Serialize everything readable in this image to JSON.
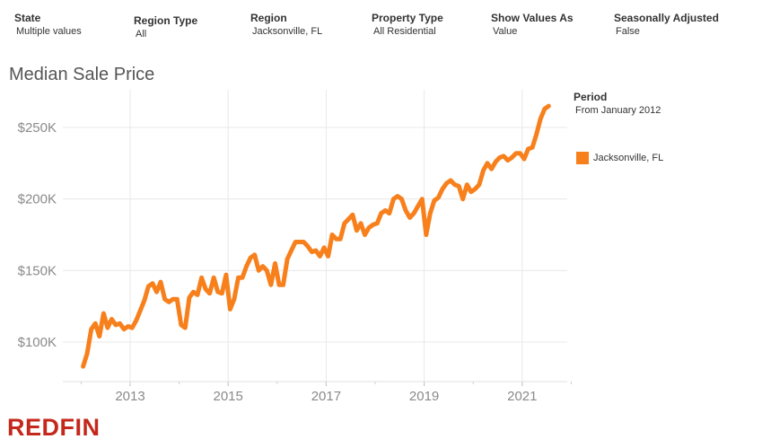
{
  "filters": [
    {
      "label": "State",
      "value": "Multiple values"
    },
    {
      "label": "Region Type",
      "value": "All"
    },
    {
      "label": "Region",
      "value": "Jacksonville, FL"
    },
    {
      "label": "Property Type",
      "value": "All Residential"
    },
    {
      "label": "Show Values As",
      "value": "Value"
    },
    {
      "label": "Seasonally Adjusted",
      "value": "False"
    }
  ],
  "legend": {
    "title": "Period",
    "subtitle": "From January 2012",
    "item": "Jacksonville, FL"
  },
  "logo": "REDFIN",
  "colors": {
    "line": "#F7801C",
    "logo": "#C4281C",
    "grid": "#E8E8E8"
  },
  "chart_data": {
    "type": "line",
    "title": "Median Sale Price",
    "xlabel": "",
    "ylabel": "",
    "x_ticks": [
      "2013",
      "2015",
      "2017",
      "2019",
      "2021"
    ],
    "y_ticks": [
      "$100K",
      "$150K",
      "$200K",
      "$250K"
    ],
    "y_tick_values": [
      100000,
      150000,
      200000,
      250000
    ],
    "xlim": [
      2012.0,
      2022.0
    ],
    "ylim": [
      80000,
      270000
    ],
    "grid": true,
    "series": [
      {
        "name": "Jacksonville, FL",
        "color": "#F7801C",
        "x": [
          2012.0,
          2012.083,
          2012.167,
          2012.25,
          2012.333,
          2012.417,
          2012.5,
          2012.583,
          2012.667,
          2012.75,
          2012.833,
          2012.917,
          2013.0,
          2013.083,
          2013.167,
          2013.25,
          2013.333,
          2013.417,
          2013.5,
          2013.583,
          2013.667,
          2013.75,
          2013.833,
          2013.917,
          2014.0,
          2014.083,
          2014.167,
          2014.25,
          2014.333,
          2014.417,
          2014.5,
          2014.583,
          2014.667,
          2014.75,
          2014.833,
          2014.917,
          2015.0,
          2015.083,
          2015.167,
          2015.25,
          2015.333,
          2015.417,
          2015.5,
          2015.583,
          2015.667,
          2015.75,
          2015.833,
          2015.917,
          2016.0,
          2016.083,
          2016.167,
          2016.25,
          2016.333,
          2016.417,
          2016.5,
          2016.583,
          2016.667,
          2016.75,
          2016.833,
          2016.917,
          2017.0,
          2017.083,
          2017.167,
          2017.25,
          2017.333,
          2017.417,
          2017.5,
          2017.583,
          2017.667,
          2017.75,
          2017.833,
          2017.917,
          2018.0,
          2018.083,
          2018.167,
          2018.25,
          2018.333,
          2018.417,
          2018.5,
          2018.583,
          2018.667,
          2018.75,
          2018.833,
          2018.917,
          2019.0,
          2019.083,
          2019.167,
          2019.25,
          2019.333,
          2019.417,
          2019.5,
          2019.583,
          2019.667,
          2019.75,
          2019.833,
          2019.917,
          2020.0,
          2020.083,
          2020.167,
          2020.25,
          2020.333,
          2020.417,
          2020.5,
          2020.583,
          2020.667,
          2020.75,
          2020.833,
          2020.917,
          2021.0,
          2021.083,
          2021.167,
          2021.25,
          2021.333,
          2021.417,
          2021.5
        ],
        "y": [
          83000,
          92000,
          109000,
          113000,
          104000,
          120000,
          110000,
          116000,
          112000,
          113000,
          109000,
          111000,
          110000,
          115000,
          122000,
          129000,
          139000,
          141000,
          135000,
          142000,
          130000,
          128000,
          130000,
          130000,
          112000,
          110000,
          131000,
          135000,
          133000,
          145000,
          137000,
          134000,
          145000,
          135000,
          134000,
          147000,
          123000,
          130000,
          145000,
          145000,
          153000,
          159000,
          161000,
          150000,
          153000,
          150000,
          140000,
          155000,
          140000,
          140000,
          158000,
          164000,
          170000,
          170000,
          170000,
          167000,
          163000,
          164000,
          160000,
          166000,
          160000,
          175000,
          172000,
          172000,
          183000,
          186000,
          189000,
          178000,
          183000,
          175000,
          180000,
          182000,
          183000,
          190000,
          192000,
          190000,
          200000,
          202000,
          200000,
          192000,
          187000,
          190000,
          195000,
          200000,
          175000,
          190000,
          199000,
          201000,
          207000,
          211000,
          213000,
          210000,
          209000,
          200000,
          210000,
          205000,
          207000,
          210000,
          220000,
          225000,
          221000,
          226000,
          229000,
          230000,
          227000,
          229000,
          232000,
          232000,
          228000,
          235000,
          236000,
          245000,
          256000,
          263000,
          265000
        ]
      }
    ]
  }
}
